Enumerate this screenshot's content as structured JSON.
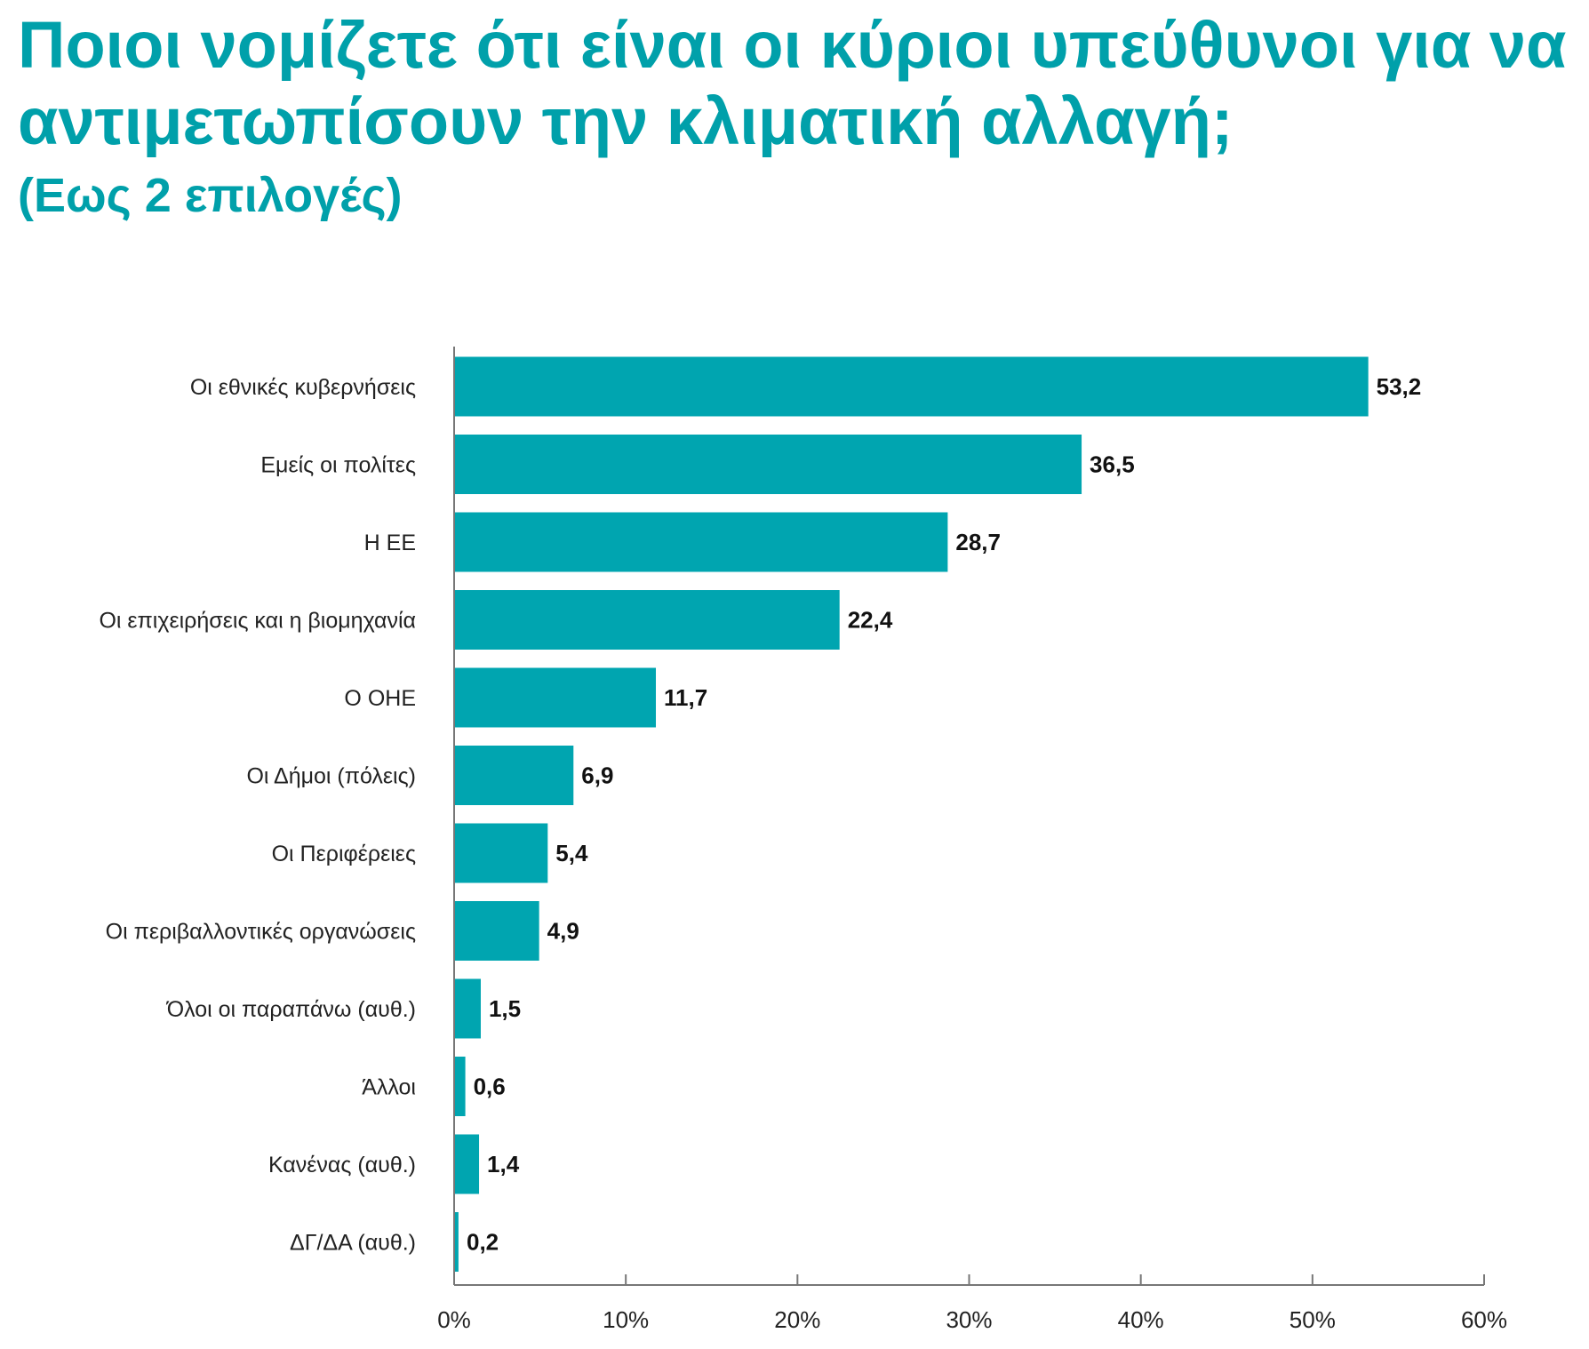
{
  "chart_data": {
    "type": "bar",
    "orientation": "horizontal",
    "title": "Ποιοι νομίζετε ότι είναι οι κύριοι υπεύθυνοι για να αντιμετωπίσουν την κλιματική αλλαγή;",
    "subtitle": "(Εως 2 επιλογές)",
    "categories": [
      "Οι εθνικές κυβερνήσεις",
      "Εμείς οι πολίτες",
      "Η ΕΕ",
      "Οι επιχειρήσεις και η βιομηχανία",
      "Ο ΟΗΕ",
      "Οι Δήμοι (πόλεις)",
      "Οι Περιφέρειες",
      "Οι περιβαλλοντικές οργανώσεις",
      "Όλοι οι παραπάνω (αυθ.)",
      "Άλλοι",
      "Κανένας (αυθ.)",
      "ΔΓ/ΔΑ (αυθ.)"
    ],
    "values": [
      53.2,
      36.5,
      28.7,
      22.4,
      11.7,
      6.9,
      5.4,
      4.9,
      1.5,
      0.6,
      1.4,
      0.2
    ],
    "value_labels": [
      "53,2",
      "36,5",
      "28,7",
      "22,4",
      "11,7",
      "6,9",
      "5,4",
      "4,9",
      "1,5",
      "0,6",
      "1,4",
      "0,2"
    ],
    "xlim": [
      0,
      60
    ],
    "xticks": [
      0,
      10,
      20,
      30,
      40,
      50,
      60
    ],
    "xtick_labels": [
      "0%",
      "10%",
      "20%",
      "30%",
      "40%",
      "50%",
      "60%"
    ],
    "xlabel": "",
    "ylabel": "",
    "grid": false,
    "colors": {
      "bar": "#00A5B0",
      "title": "#00A0AA",
      "axis": "#777777"
    }
  }
}
